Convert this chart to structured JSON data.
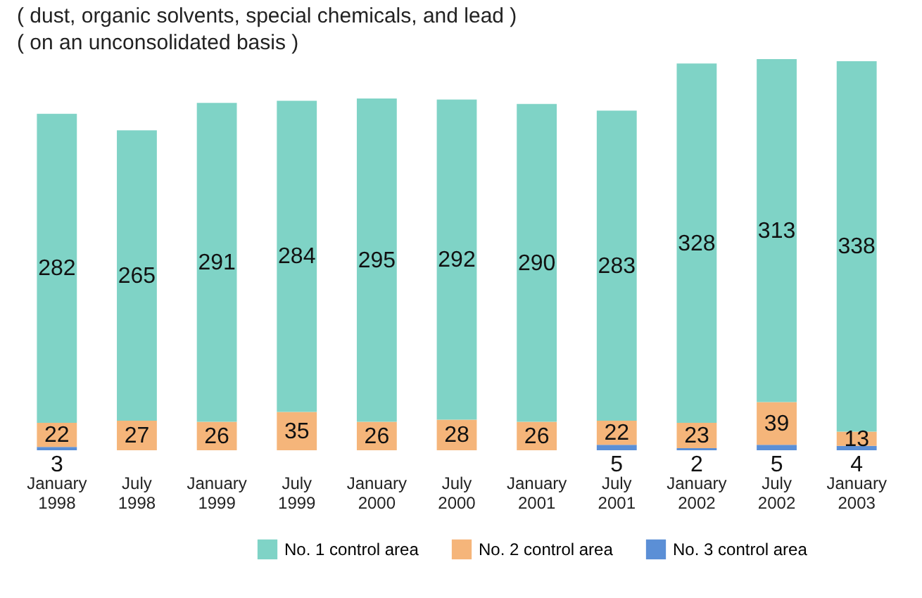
{
  "chart_data": {
    "type": "bar",
    "stacked": true,
    "data_labels": true,
    "legend": "bottom right",
    "tick_labels": "x",
    "annotations": [
      "( dust, organic solvents, special chemicals, and lead )",
      "( on an unconsolidated basis )"
    ],
    "categories": [
      "January 1998",
      "July 1998",
      "January 1999",
      "July 1999",
      "January 2000",
      "July 2000",
      "January 2001",
      "July 2001",
      "January 2002",
      "July 2002",
      "January 2003"
    ],
    "series": [
      {
        "name": "No. 3 control area",
        "color": "#5b8fd6",
        "values": [
          3,
          null,
          null,
          null,
          null,
          null,
          null,
          5,
          2,
          5,
          4
        ]
      },
      {
        "name": "No. 2 control area",
        "color": "#f5b57a",
        "values": [
          22,
          27,
          26,
          35,
          26,
          28,
          26,
          22,
          23,
          39,
          13
        ]
      },
      {
        "name": "No. 1 control area",
        "color": "#7fd3c6",
        "values": [
          282,
          265,
          291,
          284,
          295,
          292,
          290,
          283,
          328,
          313,
          338
        ]
      }
    ]
  }
}
